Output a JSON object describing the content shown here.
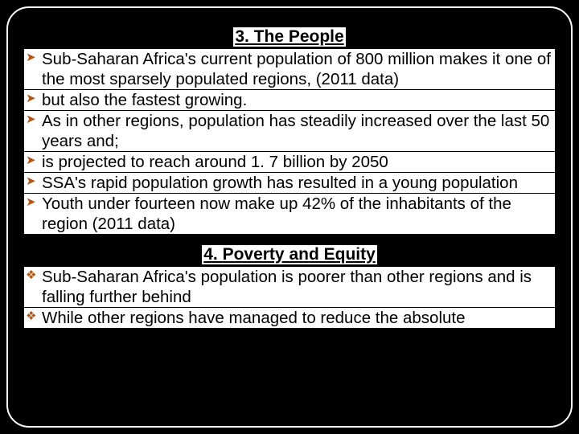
{
  "heading1": "3. The People",
  "heading2": "4. Poverty and Equity",
  "section1": {
    "b1": "Sub-Saharan Africa's current population of 800 million makes it one of the most sparsely populated regions, (2011 data)",
    "b2": "but also the fastest growing.",
    "b3": "As in other regions, population has steadily increased over the last 50 years and;",
    "b4": " is projected to reach around 1. 7 billion by 2050",
    "b5": "SSA's rapid population growth has resulted in a young population",
    "b6": "Youth under fourteen now make up 42% of the inhabitants of the region (2011 data)"
  },
  "section2": {
    "b1": "Sub-Saharan Africa's population is poorer than other regions and is falling further behind",
    "b2": "While other regions have managed to reduce the absolute"
  },
  "markers": {
    "arrow": "➤",
    "diamond": "❖"
  },
  "colors": {
    "marker": "#b35419",
    "text": "#000000",
    "bg": "#ffffff",
    "frame_bg": "#000000"
  }
}
